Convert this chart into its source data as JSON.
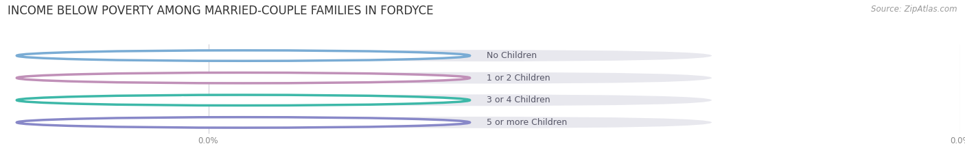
{
  "title": "INCOME BELOW POVERTY AMONG MARRIED-COUPLE FAMILIES IN FORDYCE",
  "source": "Source: ZipAtlas.com",
  "categories": [
    "No Children",
    "1 or 2 Children",
    "3 or 4 Children",
    "5 or more Children"
  ],
  "values": [
    0.0,
    0.0,
    0.0,
    0.0
  ],
  "bar_colors": [
    "#a8c4e0",
    "#d4a8cc",
    "#6cc4b8",
    "#a8a8d8"
  ],
  "circle_colors": [
    "#7aacd4",
    "#c090b8",
    "#3db8a8",
    "#8888c8"
  ],
  "background_color": "#ffffff",
  "bar_bg_color": "#e8e8ee",
  "title_fontsize": 12,
  "source_fontsize": 8.5,
  "label_fontsize": 9,
  "value_fontsize": 9,
  "tick_fontsize": 8.5,
  "figsize": [
    14.06,
    2.33
  ],
  "dpi": 100,
  "grid_color": "#d0d0d8",
  "label_color": "#555566",
  "value_text_color": "#ffffff",
  "tick_color": "#888888"
}
